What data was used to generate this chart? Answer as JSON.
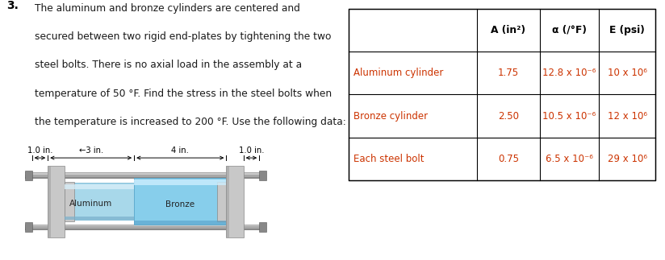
{
  "problem_number": "3.",
  "problem_lines": [
    "The aluminum and bronze cylinders are centered and",
    "secured between two rigid end-plates by tightening the two",
    "steel bolts. There is no axial load in the assembly at a",
    "temperature of 50 °F. Find the stress in the steel bolts when",
    "the temperature is increased to 200 °F. Use the following data:"
  ],
  "table_col_headers": [
    "A (in²)",
    "α (/°F)",
    "E (psi)"
  ],
  "table_row_labels": [
    "Aluminum cylinder",
    "Bronze cylinder",
    "Each steel bolt"
  ],
  "table_A": [
    "1.75",
    "2.50",
    "0.75"
  ],
  "table_alpha": [
    "12.8 x 10⁻⁶",
    "10.5 x 10⁻⁶",
    "6.5 x 10⁻⁶"
  ],
  "table_E": [
    "10 x 10⁶",
    "12 x 10⁶",
    "29 x 10⁶"
  ],
  "dim_labels": [
    "1.0 in.",
    "3 in.",
    "4 in.",
    "1.0 in."
  ],
  "diag_label_al": "Aluminum",
  "diag_label_br": "Bronze",
  "text_color": "#cc3300",
  "header_color": "#000000",
  "body_text_color": "#1a1a1a",
  "aluminum_fill": "#a8d8ea",
  "bronze_fill": "#87ceeb",
  "plate_color": "#c0c0c0",
  "bolt_color": "#aaaaaa",
  "bg_color": "#ffffff"
}
